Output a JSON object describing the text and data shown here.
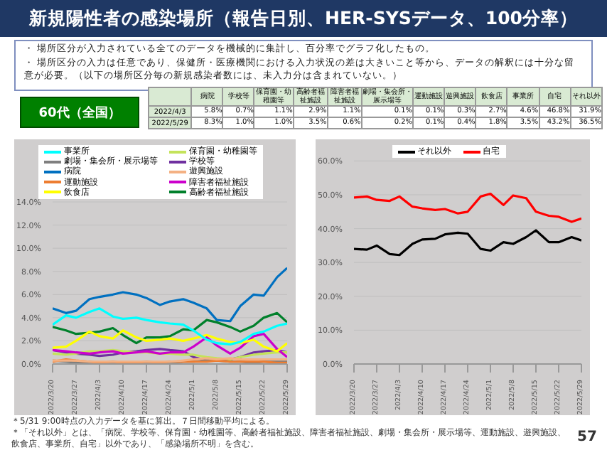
{
  "chart_data": [
    {
      "type": "other",
      "title": "新規陽性者の感染場所（報告日別、HER-SYSデータ、100分率）",
      "subtitle": "60代（全国）",
      "annotations": [
        "・ 場所区分が入力されている全てのデータを機械的に集計し、百分率でグラフ化したもの。",
        "・ 場所区分の入力は任意であり、保健所・医療機関における入力状況の差は大きいこと等から、データの解釈には十分な留意が必要。（以下の場所区分毎の新規感染者数には、未入力分は含まれていない。）",
        "＊5/31 9:00時点の入力データを基に算出。７日間移動平均による。",
        "＊「それ以外」とは、「病院、学校等、保育園・幼稚園等、高齢者福祉施設、障害者福祉施設、劇場・集会所・展示場等、運動施設、遊興施設、飲食店、事業所、自宅」以外であり、「感染場所不明」を含む。",
        "57"
      ]
    },
    {
      "type": "other",
      "categories": [
        "病院",
        "学校等",
        "保育園・幼稚園等",
        "高齢者福祉施設",
        "障害者福祉施設",
        "劇場・集会所・展示場等",
        "運動施設",
        "遊興施設",
        "飲食店",
        "事業所",
        "自宅",
        "それ以外"
      ],
      "y_categories": [
        "2022/4/3",
        "2022/5/29"
      ],
      "cell_labels": [
        [
          "5.8%",
          "0.7%",
          "1.1%",
          "2.9%",
          "1.1%",
          "0.1%",
          "0.1%",
          "0.3%",
          "2.7%",
          "4.6%",
          "46.8%",
          "31.9%"
        ],
        [
          "8.3%",
          "1.0%",
          "1.0%",
          "3.5%",
          "0.6%",
          "0.2%",
          "0.1%",
          "0.4%",
          "1.8%",
          "3.5%",
          "43.2%",
          "36.5%"
        ]
      ]
    },
    {
      "type": "line",
      "legend": "top",
      "grid": "y",
      "marker": "none",
      "x": [
        "2022-03-20",
        "2022-03-24",
        "2022-03-27",
        "2022-03-31",
        "2022-04-03",
        "2022-04-07",
        "2022-04-10",
        "2022-04-14",
        "2022-04-17",
        "2022-04-21",
        "2022-04-24",
        "2022-04-28",
        "2022-05-01",
        "2022-05-05",
        "2022-05-08",
        "2022-05-12",
        "2022-05-15",
        "2022-05-19",
        "2022-05-22",
        "2022-05-26",
        "2022-05-29"
      ],
      "xlim": [
        "2022-03-20",
        "2022-05-29"
      ],
      "xticks": [
        {
          "value": "2022-03-20",
          "label": "2022/3/20"
        },
        {
          "value": "2022-03-27",
          "label": "2022/3/27"
        },
        {
          "value": "2022-04-03",
          "label": "2022/4/3"
        },
        {
          "value": "2022-04-10",
          "label": "2022/4/10"
        },
        {
          "value": "2022-04-17",
          "label": "2022/4/17"
        },
        {
          "value": "2022-04-24",
          "label": "2022/4/24"
        },
        {
          "value": "2022-05-01",
          "label": "2022/5/1"
        },
        {
          "value": "2022-05-08",
          "label": "2022/5/8"
        },
        {
          "value": "2022-05-15",
          "label": "2022/5/15"
        },
        {
          "value": "2022-05-22",
          "label": "2022/5/22"
        },
        {
          "value": "2022-05-29",
          "label": "2022/5/29"
        }
      ],
      "ylim": [
        0,
        14
      ],
      "yticks": [
        {
          "value": 0,
          "label": "0.0%"
        },
        {
          "value": 2,
          "label": "2.0%"
        },
        {
          "value": 4,
          "label": "4.0%"
        },
        {
          "value": 6,
          "label": "6.0%"
        },
        {
          "value": 8,
          "label": "8.0%"
        },
        {
          "value": 10,
          "label": "10.0%"
        },
        {
          "value": 12,
          "label": "12.0%"
        },
        {
          "value": 14,
          "label": "14.0%"
        }
      ],
      "series": [
        {
          "name": "病院",
          "color": "#0070c0",
          "values": [
            4.8,
            4.4,
            4.6,
            5.6,
            5.8,
            6.0,
            6.2,
            6.0,
            5.7,
            5.1,
            5.4,
            5.6,
            5.3,
            4.8,
            3.8,
            3.7,
            5.0,
            6.0,
            5.9,
            7.5,
            8.3
          ]
        },
        {
          "name": "学校等",
          "color": "#7030a0",
          "values": [
            1.2,
            1.0,
            0.9,
            0.8,
            0.7,
            0.8,
            1.0,
            1.1,
            1.2,
            1.3,
            1.2,
            1.1,
            0.6,
            0.3,
            0.3,
            0.4,
            0.6,
            1.0,
            1.1,
            1.2,
            1.0
          ]
        },
        {
          "name": "保育園・幼稚園等",
          "color": "#c4e35a",
          "values": [
            0.9,
            0.8,
            0.9,
            1.1,
            1.1,
            1.2,
            1.1,
            1.0,
            1.0,
            0.9,
            0.9,
            0.8,
            0.8,
            0.6,
            0.5,
            0.4,
            0.6,
            0.8,
            0.9,
            1.0,
            1.0
          ]
        },
        {
          "name": "高齢者福祉施設",
          "color": "#00802b",
          "values": [
            3.2,
            2.9,
            2.6,
            2.7,
            2.8,
            3.1,
            2.5,
            1.8,
            2.3,
            2.3,
            2.4,
            3.0,
            2.9,
            3.8,
            3.6,
            3.2,
            2.8,
            3.3,
            4.0,
            4.4,
            3.6
          ]
        },
        {
          "name": "障害者福祉施設",
          "color": "#cc00cc",
          "values": [
            1.2,
            1.1,
            1.0,
            0.9,
            1.0,
            1.1,
            0.9,
            1.0,
            1.1,
            0.9,
            1.0,
            1.0,
            1.5,
            2.3,
            1.6,
            0.9,
            1.4,
            2.4,
            2.6,
            1.3,
            0.6
          ]
        },
        {
          "name": "劇場・集会所・展示場等",
          "color": "#7f7f7f",
          "values": [
            0.3,
            0.2,
            0.1,
            0.1,
            0.1,
            0.1,
            0.1,
            0.1,
            0.1,
            0.1,
            0.1,
            0.2,
            0.2,
            0.3,
            0.3,
            0.2,
            0.2,
            0.1,
            0.2,
            0.2,
            0.2
          ]
        },
        {
          "name": "運動施設",
          "color": "#ed7d31",
          "values": [
            0.2,
            0.4,
            0.3,
            0.2,
            0.1,
            0.2,
            0.1,
            0.1,
            0.2,
            0.1,
            0.2,
            0.2,
            0.2,
            0.2,
            0.3,
            0.2,
            0.2,
            0.2,
            0.2,
            0.1,
            0.1
          ]
        },
        {
          "name": "遊興施設",
          "color": "#f4b183",
          "values": [
            0.3,
            0.3,
            0.3,
            0.2,
            0.2,
            0.2,
            0.2,
            0.2,
            0.2,
            0.2,
            0.2,
            0.3,
            0.4,
            0.5,
            0.4,
            0.5,
            0.4,
            0.4,
            0.4,
            0.4,
            0.4
          ]
        },
        {
          "name": "飲食店",
          "color": "#ffff00",
          "values": [
            1.4,
            1.5,
            2.0,
            2.8,
            2.4,
            2.2,
            2.9,
            2.3,
            2.0,
            2.1,
            2.2,
            2.0,
            2.2,
            2.5,
            2.2,
            1.9,
            1.8,
            2.1,
            1.5,
            1.1,
            1.8
          ]
        },
        {
          "name": "事業所",
          "color": "#00ffff",
          "values": [
            3.4,
            4.2,
            4.0,
            4.5,
            4.8,
            4.1,
            3.9,
            4.0,
            3.8,
            3.6,
            3.5,
            3.4,
            2.9,
            2.1,
            1.8,
            1.7,
            1.9,
            2.6,
            2.8,
            3.3,
            3.5
          ]
        }
      ]
    },
    {
      "type": "line",
      "legend": "top",
      "grid": "y",
      "marker": "none",
      "x": [
        "2022-03-20",
        "2022-03-24",
        "2022-03-27",
        "2022-03-31",
        "2022-04-03",
        "2022-04-07",
        "2022-04-10",
        "2022-04-14",
        "2022-04-17",
        "2022-04-21",
        "2022-04-24",
        "2022-04-28",
        "2022-05-01",
        "2022-05-05",
        "2022-05-08",
        "2022-05-12",
        "2022-05-15",
        "2022-05-19",
        "2022-05-22",
        "2022-05-26",
        "2022-05-29"
      ],
      "xlim": [
        "2022-03-20",
        "2022-05-29"
      ],
      "xticks": [
        {
          "value": "2022-03-20",
          "label": "2022/3/20"
        },
        {
          "value": "2022-03-27",
          "label": "2022/3/27"
        },
        {
          "value": "2022-04-03",
          "label": "2022/4/3"
        },
        {
          "value": "2022-04-10",
          "label": "2022/4/10"
        },
        {
          "value": "2022-04-17",
          "label": "2022/4/17"
        },
        {
          "value": "2022-04-24",
          "label": "2022/4/24"
        },
        {
          "value": "2022-05-01",
          "label": "2022/5/1"
        },
        {
          "value": "2022-05-08",
          "label": "2022/5/8"
        },
        {
          "value": "2022-05-15",
          "label": "2022/5/15"
        },
        {
          "value": "2022-05-22",
          "label": "2022/5/22"
        },
        {
          "value": "2022-05-29",
          "label": "2022/5/29"
        }
      ],
      "ylim": [
        0,
        60
      ],
      "yticks": [
        {
          "value": 0,
          "label": "0.0%"
        },
        {
          "value": 10,
          "label": "10.0%"
        },
        {
          "value": 20,
          "label": "20.0%"
        },
        {
          "value": 30,
          "label": "30.0%"
        },
        {
          "value": 40,
          "label": "40.0%"
        },
        {
          "value": 50,
          "label": "50.0%"
        },
        {
          "value": 60,
          "label": "60.0%"
        }
      ],
      "series": [
        {
          "name": "自宅",
          "color": "#ff0000",
          "values": [
            49.2,
            49.5,
            48.5,
            48.2,
            49.5,
            46.5,
            46.0,
            45.5,
            45.8,
            44.5,
            45.0,
            49.5,
            50.3,
            47.0,
            49.8,
            49.0,
            45.0,
            43.8,
            43.5,
            42.0,
            43.0
          ]
        },
        {
          "name": "それ以外",
          "color": "#000000",
          "values": [
            34.0,
            33.8,
            35.0,
            32.5,
            32.2,
            35.5,
            36.8,
            37.0,
            38.3,
            38.8,
            38.5,
            34.0,
            33.5,
            36.0,
            35.5,
            37.5,
            39.5,
            36.0,
            36.0,
            37.5,
            36.5
          ]
        }
      ]
    }
  ]
}
